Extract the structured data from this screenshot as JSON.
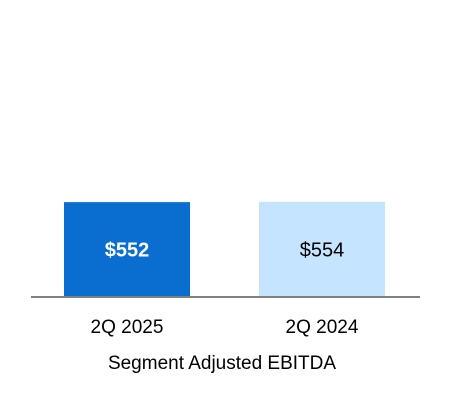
{
  "chart_data": {
    "type": "bar",
    "categories": [
      "2Q 2025",
      "2Q 2024"
    ],
    "values": [
      552,
      554
    ],
    "data_labels": [
      "$552",
      "$554"
    ],
    "title": "",
    "xlabel": "Segment Adjusted EBITDA",
    "ylabel": "",
    "ylim": [
      0,
      1600
    ],
    "grid": false,
    "legend": "none",
    "colors": [
      "#0a6ed1",
      "#c5e4ff"
    ],
    "label_colors": [
      "#ffffff",
      "#000000"
    ],
    "axis_color": "#808080"
  }
}
